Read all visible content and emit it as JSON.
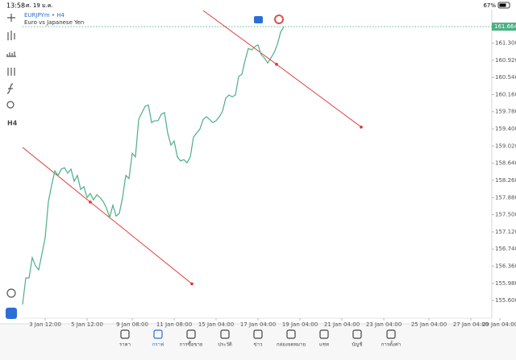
{
  "status_bar": {
    "time": "13:58",
    "date": "ศ. 19 ม.ค.",
    "battery": "67%"
  },
  "chart_data": {
    "type": "line",
    "title": "EURJPYm • H4",
    "subtitle": "Euro vs Japanese Yen",
    "timeframe_button": "H4",
    "series": [
      {
        "name": "EURJPYm",
        "color": "#4caf85",
        "values": [
          155.51,
          156.1,
          156.1,
          156.55,
          156.37,
          156.28,
          156.63,
          156.99,
          157.79,
          158.15,
          158.47,
          158.37,
          158.51,
          158.54,
          158.42,
          158.51,
          158.24,
          158.37,
          158.06,
          158.12,
          157.88,
          157.97,
          157.83,
          157.94,
          157.88,
          157.79,
          157.65,
          157.44,
          157.71,
          157.47,
          157.53,
          157.88,
          158.37,
          158.3,
          158.86,
          158.78,
          159.61,
          159.76,
          159.9,
          159.93,
          159.54,
          159.58,
          159.58,
          159.72,
          159.76,
          159.31,
          159.04,
          159.13,
          158.78,
          158.69,
          158.72,
          158.65,
          158.78,
          159.22,
          159.31,
          159.4,
          159.61,
          159.67,
          159.61,
          159.54,
          159.58,
          159.67,
          159.79,
          160.08,
          160.15,
          160.11,
          160.15,
          160.56,
          160.61,
          160.92,
          161.18,
          161.15,
          161.22,
          161.26,
          161.04,
          160.97,
          160.86,
          160.97,
          161.09,
          161.27,
          161.54,
          161.66
        ]
      }
    ],
    "current_price": 161.664,
    "trendlines": [
      {
        "color": "#e03030",
        "x": [
          0,
          21,
          52.5
        ],
        "y": [
          158.99,
          157.78,
          155.97
        ]
      },
      {
        "color": "#e03030",
        "x": [
          56,
          78.75,
          105
        ],
        "y": [
          162.02,
          160.83,
          159.44
        ]
      }
    ],
    "xlim": [
      0,
      153
    ],
    "xticks": [
      {
        "value": 7,
        "label": "3 Jan 12:00"
      },
      {
        "value": 20,
        "label": "5 Jan 12:00"
      },
      {
        "value": 34,
        "label": "9 Jan 08:00"
      },
      {
        "value": 47,
        "label": "11 Jan 08:00"
      },
      {
        "value": 60,
        "label": "15 Jan 04:00"
      },
      {
        "value": 73,
        "label": "17 Jan 04:00"
      },
      {
        "value": 86,
        "label": "19 Jan 04:00"
      },
      {
        "value": 99,
        "label": "21 Jan 04:00"
      },
      {
        "value": 112,
        "label": "23 Jan 04:00"
      },
      {
        "value": 126,
        "label": "25 Jan 04:00"
      },
      {
        "value": 139,
        "label": "27 Jan 04:00"
      },
      {
        "value": 148,
        "label": "29 Jan 04:00"
      }
    ],
    "ylim": [
      155.21,
      162.04
    ],
    "yticks": [
      {
        "value": 155.6,
        "label": "155.600"
      },
      {
        "value": 155.98,
        "label": "155.980"
      },
      {
        "value": 156.36,
        "label": "156.360"
      },
      {
        "value": 156.74,
        "label": "156.740"
      },
      {
        "value": 157.12,
        "label": "157.120"
      },
      {
        "value": 157.5,
        "label": "157.500"
      },
      {
        "value": 157.88,
        "label": "157.880"
      },
      {
        "value": 158.26,
        "label": "158.260"
      },
      {
        "value": 158.64,
        "label": "158.640"
      },
      {
        "value": 159.02,
        "label": "159.020"
      },
      {
        "value": 159.4,
        "label": "159.400"
      },
      {
        "value": 159.78,
        "label": "159.780"
      },
      {
        "value": 160.16,
        "label": "160.160"
      },
      {
        "value": 160.54,
        "label": "160.540"
      },
      {
        "value": 160.92,
        "label": "160.920"
      },
      {
        "value": 161.3,
        "label": "161.300"
      }
    ]
  },
  "tabs": [
    "ราคา",
    "กราฟ",
    "การซื้อขาย",
    "ประวัติ",
    "ข่าว",
    "กล่องจดหมาย",
    "แชท",
    "บัญชี",
    "การตั้งค่า"
  ],
  "active_tab": 1
}
